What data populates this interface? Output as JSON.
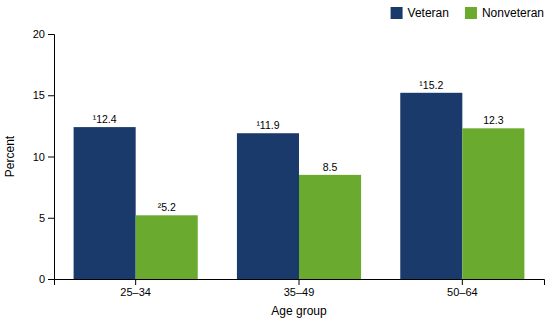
{
  "chart_data": {
    "type": "bar",
    "categories": [
      "25–34",
      "35–49",
      "50–64"
    ],
    "series": [
      {
        "name": "Veteran",
        "color": "#1a3a6b",
        "values": [
          12.4,
          11.9,
          15.2
        ],
        "value_labels": [
          "¹12.4",
          "¹11.9",
          "¹15.2"
        ]
      },
      {
        "name": "Nonveteran",
        "color": "#6aaa2e",
        "values": [
          5.2,
          8.5,
          12.3
        ],
        "value_labels": [
          "²5.2",
          "8.5",
          "12.3"
        ]
      }
    ],
    "xlabel": "Age group",
    "ylabel": "Percent",
    "ylim": [
      0,
      20
    ],
    "yticks": [
      0,
      5,
      10,
      15,
      20
    ],
    "grid": false,
    "legend": "upper right",
    "data_labels": true
  }
}
